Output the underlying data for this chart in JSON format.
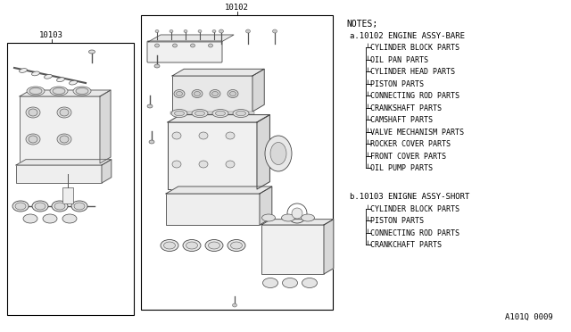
{
  "bg_color": "#ffffff",
  "border_color": "#000000",
  "text_color": "#000000",
  "notes_title": "NOTES;",
  "section_a_header": "a.10102 ENGINE ASSY-BARE",
  "section_a_items": [
    "CYLINDER BLOCK PARTS",
    "OIL PAN PARTS",
    "CYLINDER HEAD PARTS",
    "PISTON PARTS",
    "CONNECTING ROD PARTS",
    "CRANKSHAFT PARTS",
    "CAMSHAFT PARTS",
    "VALVE MECHANISM PARTS",
    "ROCKER COVER PARTS",
    "FRONT COVER PARTS",
    "OIL PUMP PARTS"
  ],
  "section_b_header": "b.10103 ENIGNE ASSY-SHORT",
  "section_b_items": [
    "CYLINDER BLOCK PARTS",
    "PISTON PARTS",
    "CONNECTING ROD PARTS",
    "CRANKCHAFT PARTS"
  ],
  "label_10102": "10102",
  "label_10103": "10103",
  "footnote": "A101Q 0009",
  "line_color": "#888888",
  "sketch_color": "#555555"
}
